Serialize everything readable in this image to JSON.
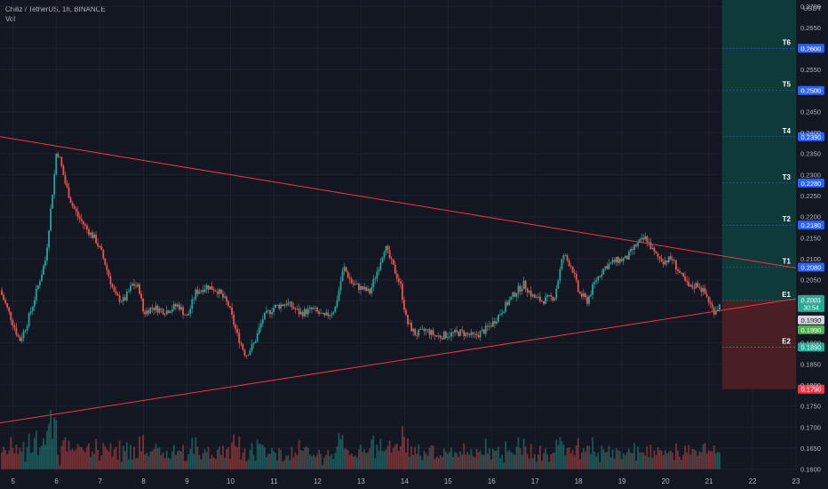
{
  "legend": {
    "symbol_line": "Chiliz / TetherUS, 1h, BINANCE",
    "indicator": "Vol"
  },
  "colors": {
    "background": "#131722",
    "grid": "#1e222d",
    "up": "#26a69a",
    "down": "#ef5350",
    "trendline": "#f23645",
    "target_zone": "#0f3a3a",
    "stop_zone": "#4a1f24",
    "target_label": "#2962ff",
    "entry_label": "#22ab94",
    "stop_label": "#f23645",
    "axis_text": "#b2b5be"
  },
  "chart_data": {
    "type": "candlestick",
    "symbol": "Chiliz / TetherUS",
    "interval": "1h",
    "exchange": "BINANCE",
    "currency": "USDT",
    "x_ticks": [
      "5",
      "6",
      "7",
      "8",
      "9",
      "10",
      "11",
      "12",
      "13",
      "14",
      "15",
      "16",
      "17",
      "18",
      "19",
      "20",
      "21",
      "22",
      "23"
    ],
    "x_range_days": [
      4.7,
      23.0
    ],
    "y_ticks": [
      "0.2700",
      "0.2650",
      "0.2600",
      "0.2550",
      "0.2500",
      "0.2450",
      "0.2400",
      "0.2350",
      "0.2300",
      "0.2250",
      "0.2200",
      "0.2150",
      "0.2100",
      "0.2050",
      "0.2000",
      "0.1950",
      "0.1900",
      "0.1850",
      "0.1800",
      "0.1750",
      "0.1700",
      "0.1650",
      "0.1600"
    ],
    "ylim": [
      0.1595,
      0.2715
    ],
    "price_path": [
      [
        4.7,
        0.2025
      ],
      [
        4.95,
        0.196
      ],
      [
        5.15,
        0.1905
      ],
      [
        5.3,
        0.194
      ],
      [
        5.45,
        0.199
      ],
      [
        5.6,
        0.2045
      ],
      [
        5.75,
        0.21
      ],
      [
        5.85,
        0.22
      ],
      [
        5.95,
        0.23
      ],
      [
        6.0,
        0.236
      ],
      [
        6.08,
        0.2335
      ],
      [
        6.2,
        0.228
      ],
      [
        6.35,
        0.223
      ],
      [
        6.5,
        0.22
      ],
      [
        6.7,
        0.217
      ],
      [
        6.9,
        0.2145
      ],
      [
        7.05,
        0.211
      ],
      [
        7.2,
        0.206
      ],
      [
        7.35,
        0.201
      ],
      [
        7.55,
        0.2
      ],
      [
        7.75,
        0.204
      ],
      [
        7.9,
        0.203
      ],
      [
        8.0,
        0.197
      ],
      [
        8.2,
        0.1985
      ],
      [
        8.5,
        0.1975
      ],
      [
        8.8,
        0.199
      ],
      [
        9.0,
        0.196
      ],
      [
        9.2,
        0.202
      ],
      [
        9.45,
        0.2035
      ],
      [
        9.7,
        0.2025
      ],
      [
        9.95,
        0.199
      ],
      [
        10.15,
        0.192
      ],
      [
        10.35,
        0.187
      ],
      [
        10.55,
        0.19
      ],
      [
        10.75,
        0.196
      ],
      [
        11.0,
        0.1985
      ],
      [
        11.3,
        0.1995
      ],
      [
        11.6,
        0.197
      ],
      [
        11.9,
        0.198
      ],
      [
        12.15,
        0.196
      ],
      [
        12.4,
        0.198
      ],
      [
        12.6,
        0.208
      ],
      [
        12.8,
        0.204
      ],
      [
        13.0,
        0.203
      ],
      [
        13.2,
        0.202
      ],
      [
        13.4,
        0.208
      ],
      [
        13.55,
        0.213
      ],
      [
        13.7,
        0.209
      ],
      [
        13.9,
        0.204
      ],
      [
        14.05,
        0.195
      ],
      [
        14.25,
        0.192
      ],
      [
        14.5,
        0.193
      ],
      [
        14.75,
        0.1915
      ],
      [
        15.0,
        0.192
      ],
      [
        15.3,
        0.1925
      ],
      [
        15.6,
        0.1915
      ],
      [
        15.85,
        0.193
      ],
      [
        16.05,
        0.195
      ],
      [
        16.3,
        0.1985
      ],
      [
        16.55,
        0.202
      ],
      [
        16.75,
        0.204
      ],
      [
        16.95,
        0.201
      ],
      [
        17.15,
        0.2
      ],
      [
        17.45,
        0.201
      ],
      [
        17.65,
        0.211
      ],
      [
        17.85,
        0.208
      ],
      [
        18.0,
        0.202
      ],
      [
        18.2,
        0.2
      ],
      [
        18.4,
        0.205
      ],
      [
        18.6,
        0.208
      ],
      [
        18.85,
        0.2095
      ],
      [
        19.1,
        0.21
      ],
      [
        19.3,
        0.213
      ],
      [
        19.55,
        0.215
      ],
      [
        19.75,
        0.211
      ],
      [
        19.95,
        0.2095
      ],
      [
        20.15,
        0.21
      ],
      [
        20.35,
        0.206
      ],
      [
        20.55,
        0.203
      ],
      [
        20.75,
        0.204
      ],
      [
        20.95,
        0.201
      ],
      [
        21.1,
        0.1975
      ],
      [
        21.25,
        0.199
      ]
    ],
    "trendlines": [
      {
        "name": "upper",
        "from": [
          4.7,
          0.239
        ],
        "to": [
          23.0,
          0.2078
        ]
      },
      {
        "name": "lower",
        "from": [
          4.7,
          0.171
        ],
        "to": [
          23.0,
          0.2005
        ]
      }
    ],
    "levels": [
      {
        "name": "T6",
        "price": 0.26,
        "label": "0.2600",
        "kind": "target"
      },
      {
        "name": "T5",
        "price": 0.25,
        "label": "0.2500",
        "kind": "target"
      },
      {
        "name": "T4",
        "price": 0.239,
        "label": "0.2390",
        "kind": "target"
      },
      {
        "name": "T3",
        "price": 0.228,
        "label": "0.2280",
        "kind": "target"
      },
      {
        "name": "T2",
        "price": 0.218,
        "label": "0.2180",
        "kind": "target"
      },
      {
        "name": "T1",
        "price": 0.208,
        "label": "0.2080",
        "kind": "target"
      },
      {
        "name": "E1",
        "price": 0.2001,
        "label": "0.2001",
        "kind": "entry"
      },
      {
        "name": "E2",
        "price": 0.189,
        "label": "0.1890",
        "kind": "entry"
      }
    ],
    "last_price": {
      "price": 0.2001,
      "label": "0.2001",
      "countdown": "30:54"
    },
    "extra_labels": [
      {
        "price": 0.199,
        "label": "0.1990",
        "kind": "gray"
      },
      {
        "price": 0.199,
        "label": "0.1990",
        "kind": "entry"
      },
      {
        "price": 0.179,
        "label": "0.1790",
        "kind": "stop"
      }
    ],
    "target_zone": {
      "x_from": 21.3,
      "top": 0.2715,
      "bottom": 0.2001
    },
    "stop_zone": {
      "x_from": 21.3,
      "top": 0.2001,
      "bottom": 0.179
    },
    "volume": {
      "baseline_price": 0.16,
      "max_height_price": 0.015
    }
  }
}
